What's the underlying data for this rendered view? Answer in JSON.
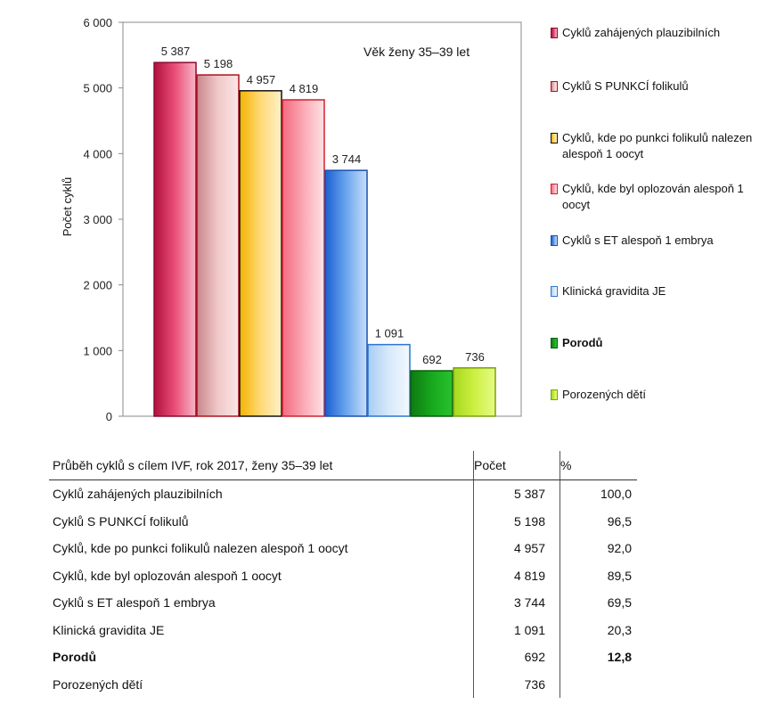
{
  "chart_data": {
    "type": "bar",
    "title": "Věk ženy 35–39 let",
    "ylabel": "Počet cyklů",
    "xlabel": "",
    "ylim": [
      0,
      6000
    ],
    "yticks": [
      "0",
      "1 000",
      "2 000",
      "3 000",
      "4 000",
      "5 000",
      "6 000"
    ],
    "ytick_values": [
      0,
      1000,
      2000,
      3000,
      4000,
      5000,
      6000
    ],
    "categories": [
      "Cyklů zahájených plauzibilních",
      "Cyklů S PUNKCÍ folikulů",
      "Cyklů, kde po punkci folikulů nalezen alespoň 1 oocyt",
      "Cyklů, kde byl oplozován alespoň 1 oocyt",
      "Cyklů s ET alespoň 1 embrya",
      "Klinická gravidita JE",
      "Porodů",
      "Porozených dětí"
    ],
    "values": [
      5387,
      5198,
      4957,
      4819,
      3744,
      1091,
      692,
      736
    ],
    "value_labels": [
      "5 387",
      "5 198",
      "4 957",
      "4 819",
      "3 744",
      "1 091",
      "692",
      "736"
    ],
    "grid": false,
    "legend_position": "right",
    "legend": [
      {
        "label": "Cyklů zahájených plauzibilních",
        "bold": false
      },
      {
        "label": "Cyklů S PUNKCÍ folikulů",
        "bold": false
      },
      {
        "label": "Cyklů, kde po punkci folikulů nalezen alespoň 1 oocyt",
        "bold": false
      },
      {
        "label": "Cyklů, kde byl oplozován alespoň 1 oocyt",
        "bold": false
      },
      {
        "label": "Cyklů s ET alespoň 1 embrya",
        "bold": false
      },
      {
        "label": "Klinická gravidita JE",
        "bold": false
      },
      {
        "label": "Porodů",
        "bold": true
      },
      {
        "label": "Porozených dětí",
        "bold": false
      }
    ],
    "colors": [
      {
        "fill_top": "#b0103c",
        "fill_mid": "#ea4f78",
        "fill_end": "#f8b7c7",
        "stroke": "#8a0a2e"
      },
      {
        "fill_top": "#c9878c",
        "fill_mid": "#f0c8c8",
        "fill_end": "#fbe6e6",
        "stroke": "#b0101e"
      },
      {
        "fill_top": "#f4b400",
        "fill_mid": "#ffd978",
        "fill_end": "#fff1c8",
        "stroke": "#111111"
      },
      {
        "fill_top": "#f36a7e",
        "fill_mid": "#fba9b4",
        "fill_end": "#fde2e5",
        "stroke": "#d0202e"
      },
      {
        "fill_top": "#1d5fd1",
        "fill_mid": "#6aa5ee",
        "fill_end": "#c9def8",
        "stroke": "#1a4fae"
      },
      {
        "fill_top": "#a8cdf3",
        "fill_mid": "#d7e9fb",
        "fill_end": "#f2f8fe",
        "stroke": "#2a77d0"
      },
      {
        "fill_top": "#0e7a12",
        "fill_mid": "#17a81d",
        "fill_end": "#29c230",
        "stroke": "#0a5a0d"
      },
      {
        "fill_top": "#a6d81e",
        "fill_mid": "#cdf042",
        "fill_end": "#e6fb86",
        "stroke": "#7aa010"
      }
    ]
  },
  "table": {
    "header": {
      "name": "Průběh cyklů s cílem IVF,  rok 2017, ženy 35–39 let",
      "count": "Počet",
      "pct": "%"
    },
    "rows": [
      {
        "name": "Cyklů zahájených plauzibilních",
        "count": "5 387",
        "pct": "100,0",
        "bold": false
      },
      {
        "name": "Cyklů S PUNKCÍ folikulů",
        "count": "5 198",
        "pct": "96,5",
        "bold": false
      },
      {
        "name": "Cyklů, kde po punkci folikulů nalezen alespoň 1 oocyt",
        "count": "4 957",
        "pct": "92,0",
        "bold": false
      },
      {
        "name": "Cyklů, kde byl oplozován alespoň 1 oocyt",
        "count": "4 819",
        "pct": "89,5",
        "bold": false
      },
      {
        "name": "Cyklů s ET alespoň 1 embrya",
        "count": "3 744",
        "pct": "69,5",
        "bold": false
      },
      {
        "name": "Klinická gravidita JE",
        "count": "1 091",
        "pct": "20,3",
        "bold": false
      },
      {
        "name": "Porodů",
        "count": "692",
        "pct": "12,8",
        "bold": true
      },
      {
        "name": "Porozených dětí",
        "count": "736",
        "pct": "",
        "bold": false
      }
    ]
  }
}
